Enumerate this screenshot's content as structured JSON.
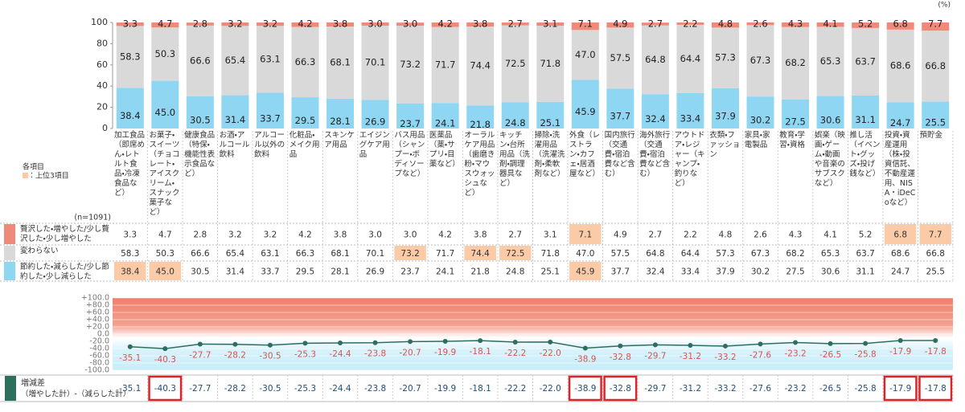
{
  "chart_data": [
    {
      "type": "bar",
      "stacked": true,
      "unit": "(%)",
      "note_title": "各項目",
      "note": "：上位3項目",
      "highlight_color": "#fbcba8",
      "n_label": "(n=1091)",
      "categories": [
        "加工食品（即席めん・レトルト食品・冷凍食品など）",
        "お菓子・スイーツ（チョコレート・アイスクリーム・スナック菓子など）",
        "健康食品（特保・機能性表示食品など）",
        "お酒・アルコール飲料",
        "アルコール以外の飲料",
        "化粧品・メイク用品",
        "スキンケア用品",
        "エイジングケア用品",
        "バス用品（シャンプー・ボディソープなど）",
        "医薬品（薬・サプリ・目薬など）",
        "オーラルケア用品（歯磨き粉・マウスウォッシュなど）",
        "キッチン・台所用品（洗剤・調理器具など）",
        "掃除・洗濯用品（洗濯洗剤・柔軟剤など）",
        "外食（レストラン・カフェ・居酒屋など）",
        "国内旅行（交通費・宿泊費など含む）",
        "海外旅行（交通費・宿泊費など含む）",
        "アウトドア・レジャー（キャンプ・釣りなど）",
        "衣類・ファッション",
        "家具・家電製品",
        "教育・学習・資格",
        "娯楽（映画・ゲーム・動画や音楽のサブスクなど）",
        "推し活（イベント・グッズ・投げ銭など）",
        "投資・資産運用（株・投資信託、不動産運用、NISA・iDeCoなど）",
        "預貯金"
      ],
      "series": [
        {
          "name": "節約した・減らした/少し節約した・少し減らした",
          "color": "#8fd6f2",
          "values": [
            38.4,
            45.0,
            30.5,
            31.4,
            33.7,
            29.5,
            28.1,
            26.9,
            23.7,
            24.1,
            21.8,
            24.8,
            25.1,
            45.9,
            37.7,
            32.4,
            33.4,
            37.9,
            30.2,
            27.5,
            30.6,
            31.1,
            24.7,
            25.5
          ],
          "value_labels": [
            "38.4",
            "45.0",
            "30.5",
            "31.4",
            "33.7",
            "29.5",
            "28.1",
            "26.9",
            "23.7",
            "24.1",
            "21.8",
            "24.8",
            "25.1",
            "45.9",
            "37.7",
            "32.4",
            "33.4",
            "37.9",
            "30.2",
            "27.5",
            "30.6",
            "31.1",
            "24.7",
            "25.5"
          ],
          "highlight": [
            0,
            1,
            13
          ]
        },
        {
          "name": "変わらない",
          "color": "#d9d9d9",
          "values": [
            58.3,
            50.3,
            66.6,
            65.4,
            63.1,
            66.3,
            68.1,
            70.1,
            73.2,
            71.7,
            74.4,
            72.5,
            71.8,
            47.0,
            57.5,
            64.8,
            64.4,
            57.3,
            67.3,
            68.2,
            65.3,
            63.7,
            68.6,
            66.8
          ],
          "value_labels": [
            "58.3",
            "50.3",
            "66.6",
            "65.4",
            "63.1",
            "66.3",
            "68.1",
            "70.1",
            "73.2",
            "71.7",
            "74.4",
            "72.5",
            "71.8",
            "47.0",
            "57.5",
            "64.8",
            "64.4",
            "57.3",
            "67.3",
            "68.2",
            "65.3",
            "63.7",
            "68.6",
            "66.8"
          ],
          "highlight": [
            8,
            10,
            11
          ]
        },
        {
          "name": "贅沢した・増やした/少し贅沢した・少し増やした",
          "color": "#f08a78",
          "values": [
            3.3,
            4.7,
            2.8,
            3.2,
            3.2,
            4.2,
            3.8,
            3.0,
            3.0,
            4.2,
            3.8,
            2.7,
            3.1,
            7.1,
            4.9,
            2.7,
            2.2,
            4.8,
            2.6,
            4.3,
            4.1,
            5.2,
            6.8,
            7.7
          ],
          "value_labels": [
            "3.3",
            "4.7",
            "2.8",
            "3.2",
            "3.2",
            "4.2",
            "3.8",
            "3.0",
            "3.0",
            "4.2",
            "3.8",
            "2.7",
            "3.1",
            "7.1",
            "4.9",
            "2.7",
            "2.2",
            "4.8",
            "2.6",
            "4.3",
            "4.1",
            "5.2",
            "6.8",
            "7.7"
          ],
          "highlight": [
            13,
            22,
            23
          ]
        }
      ],
      "ylim": [
        0,
        100
      ],
      "yticks": [
        0,
        20,
        40,
        60,
        80,
        100
      ]
    },
    {
      "type": "line",
      "name": "増減差",
      "subtitle": "（増やした計）-（減らした計）",
      "color": "#2e6e5c",
      "label_color": "#d9534f",
      "box_color": "#d9262c",
      "values": [
        -35.1,
        -40.3,
        -27.7,
        -28.2,
        -30.5,
        -25.3,
        -24.4,
        -23.8,
        -20.7,
        -19.9,
        -18.1,
        -22.2,
        -22.0,
        -38.9,
        -32.8,
        -29.7,
        -31.2,
        -33.2,
        -27.6,
        -23.2,
        -26.5,
        -25.8,
        -17.9,
        -17.8
      ],
      "value_labels": [
        "-35.1",
        "-40.3",
        "-27.7",
        "-28.2",
        "-30.5",
        "-25.3",
        "-24.4",
        "-23.8",
        "-20.7",
        "-19.9",
        "-18.1",
        "-22.2",
        "-22.0",
        "-38.9",
        "-32.8",
        "-29.7",
        "-31.2",
        "-33.2",
        "-27.6",
        "-23.2",
        "-26.5",
        "-25.8",
        "-17.9",
        "-17.8"
      ],
      "boxed": [
        1,
        13,
        14,
        22,
        23
      ],
      "ylim": [
        -100,
        100
      ],
      "yticks": [
        {
          "value": 100,
          "label": "+100.0"
        },
        {
          "value": 80,
          "label": "+80.0"
        },
        {
          "value": 60,
          "label": "+60.0"
        },
        {
          "value": 40,
          "label": "+40.0"
        },
        {
          "value": 20,
          "label": "+20.0"
        },
        {
          "value": 0,
          "label": "0.0"
        },
        {
          "value": -20,
          "label": "-20.0"
        },
        {
          "value": -40,
          "label": "-40.0"
        },
        {
          "value": -60,
          "label": "-60.0"
        },
        {
          "value": -80,
          "label": "-80.0"
        },
        {
          "value": -100,
          "label": "-100.0"
        }
      ]
    }
  ]
}
